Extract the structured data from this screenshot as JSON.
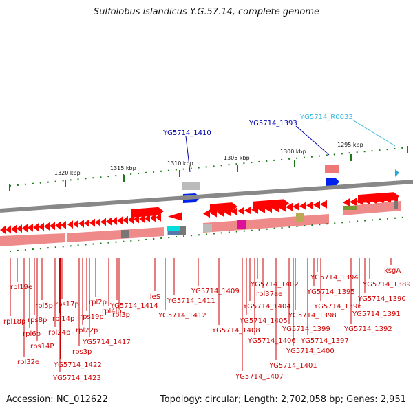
{
  "title": "Sulfolobus islandicus Y.G.57.14, complete genome",
  "accession": "Accession: NC_012622",
  "summary": "Topology: circular; Length: 2,702,058 bp; Genes: 2,951",
  "colors": {
    "forward_gene": "#ff0000",
    "reverse_gene": "#ff0000",
    "cds_band": "#ee8a8a",
    "backbone": "#888888",
    "tick": "#1a7a1a",
    "blue_label": "#0000aa",
    "red_label": "#cc0000",
    "cyan_label": "#33bbdd"
  },
  "kbp_labels": [
    "1320 kbp",
    "1315 kbp",
    "1310 kbp",
    "1305 kbp",
    "1300 kbp",
    "1295 kbp"
  ],
  "upper_labels": [
    {
      "text": "YG5714_1410",
      "color": "blue"
    },
    {
      "text": "YG5714_1393",
      "color": "blue"
    },
    {
      "text": "YG5714_R0033",
      "color": "cyan"
    }
  ],
  "lower_labels": [
    "rpl19e",
    "rpl18p",
    "rpl6p",
    "rpl32e",
    "rps8p",
    "rpl5p",
    "rps14P",
    "rps17p",
    "rpl24p",
    "rpl14p",
    "rps3p",
    "YG5714_1422",
    "YG5714_1423",
    "rpl22p",
    "rps19p",
    "rpl2p",
    "YG5714_1417",
    "rpl4lp",
    "rpl3p",
    "YG5714_1414",
    "ileS",
    "YG5714_1411",
    "YG5714_1412",
    "YG5714_1409",
    "YG5714_1408",
    "YG5714_1407",
    "YG5714_1402",
    "rpl37ae",
    "YG5714_1404",
    "YG5714_1405",
    "YG5714_1406",
    "YG5714_1401",
    "YG5714_1398",
    "YG5714_1399",
    "YG5714_1400",
    "YG5714_1397",
    "YG5714_1396",
    "YG5714_1395",
    "YG5714_1394",
    "YG5714_1391",
    "YG5714_1392",
    "YG5714_1390",
    "YG5714_1389",
    "ksgA"
  ]
}
